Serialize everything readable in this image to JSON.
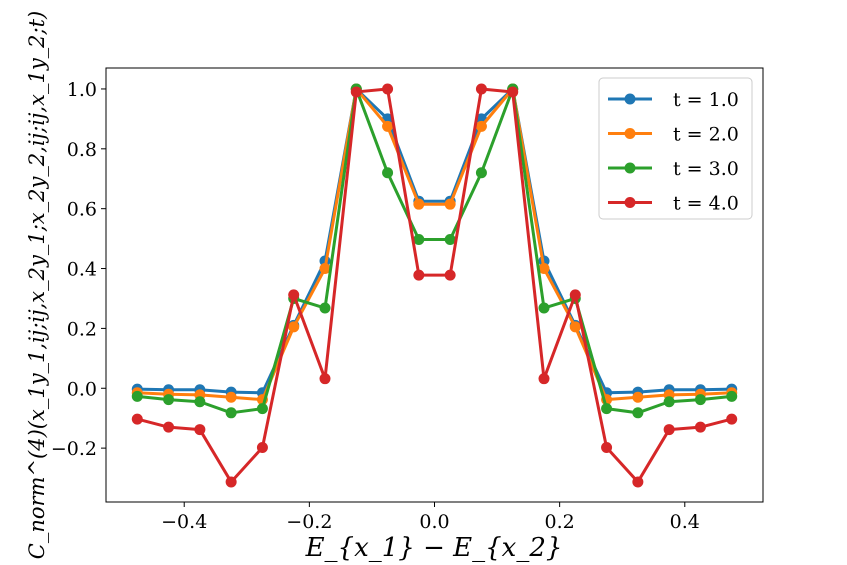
{
  "chart_data": {
    "type": "line",
    "title": "",
    "xlabel": "E_{x_1} − E_{x_2}",
    "ylabel": "C_norm^(4)(x_1y_1,ij;ij,x_2y_1;x_2y_2,ij;ij,x_1y_2;t)",
    "xlim": [
      -0.525,
      0.525
    ],
    "ylim": [
      -0.38,
      1.07
    ],
    "xticks": [
      -0.4,
      -0.2,
      0.0,
      0.2,
      0.4
    ],
    "xtick_labels": [
      "−0.4",
      "−0.2",
      "0.0",
      "0.2",
      "0.4"
    ],
    "yticks": [
      -0.2,
      0.0,
      0.2,
      0.4,
      0.6,
      0.8,
      1.0
    ],
    "ytick_labels": [
      "−0.2",
      "0.0",
      "0.2",
      "0.4",
      "0.6",
      "0.8",
      "1.0"
    ],
    "grid": false,
    "legend_position": "top-right",
    "x": [
      -0.475,
      -0.425,
      -0.375,
      -0.325,
      -0.275,
      -0.225,
      -0.175,
      -0.125,
      -0.075,
      -0.025,
      0.025,
      0.075,
      0.125,
      0.175,
      0.225,
      0.275,
      0.325,
      0.375,
      0.425,
      0.475
    ],
    "series": [
      {
        "name": "t = 1.0",
        "color": "#1f77b4",
        "values": [
          -0.003,
          -0.005,
          -0.005,
          -0.013,
          -0.015,
          0.21,
          0.425,
          1.0,
          0.9,
          0.625,
          0.625,
          0.9,
          1.0,
          0.425,
          0.21,
          -0.015,
          -0.013,
          -0.005,
          -0.005,
          -0.003
        ]
      },
      {
        "name": "t = 2.0",
        "color": "#ff7f0e",
        "values": [
          -0.015,
          -0.02,
          -0.022,
          -0.03,
          -0.038,
          0.205,
          0.4,
          1.0,
          0.875,
          0.615,
          0.615,
          0.875,
          1.0,
          0.4,
          0.205,
          -0.038,
          -0.03,
          -0.022,
          -0.02,
          -0.015
        ]
      },
      {
        "name": "t = 3.0",
        "color": "#2ca02c",
        "values": [
          -0.027,
          -0.038,
          -0.045,
          -0.082,
          -0.068,
          0.3,
          0.268,
          1.0,
          0.72,
          0.497,
          0.497,
          0.72,
          1.0,
          0.268,
          0.3,
          -0.068,
          -0.082,
          -0.045,
          -0.038,
          -0.027
        ]
      },
      {
        "name": "t = 4.0",
        "color": "#d62728",
        "values": [
          -0.103,
          -0.13,
          -0.138,
          -0.313,
          -0.198,
          0.312,
          0.032,
          0.99,
          1.0,
          0.378,
          0.378,
          1.0,
          0.99,
          0.032,
          0.312,
          -0.198,
          -0.313,
          -0.138,
          -0.13,
          -0.103
        ]
      }
    ]
  }
}
